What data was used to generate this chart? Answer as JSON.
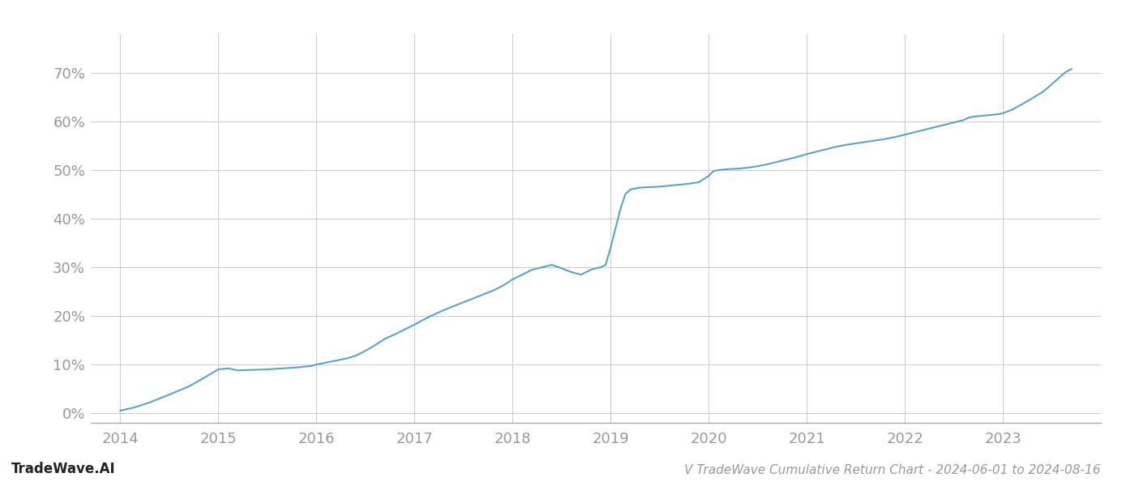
{
  "title": "V TradeWave Cumulative Return Chart - 2024-06-01 to 2024-08-16",
  "watermark": "TradeWave.AI",
  "line_color": "#5ba3c9",
  "background_color": "#ffffff",
  "grid_color": "#cccccc",
  "x_years": [
    2014,
    2015,
    2016,
    2017,
    2018,
    2019,
    2020,
    2021,
    2022,
    2023
  ],
  "data_points": [
    [
      2014.0,
      0.005
    ],
    [
      2014.15,
      0.012
    ],
    [
      2014.3,
      0.022
    ],
    [
      2014.5,
      0.038
    ],
    [
      2014.7,
      0.055
    ],
    [
      2014.85,
      0.072
    ],
    [
      2015.0,
      0.09
    ],
    [
      2015.1,
      0.092
    ],
    [
      2015.2,
      0.088
    ],
    [
      2015.35,
      0.089
    ],
    [
      2015.5,
      0.09
    ],
    [
      2015.65,
      0.092
    ],
    [
      2015.8,
      0.094
    ],
    [
      2015.95,
      0.097
    ],
    [
      2016.0,
      0.1
    ],
    [
      2016.05,
      0.102
    ],
    [
      2016.1,
      0.104
    ],
    [
      2016.15,
      0.106
    ],
    [
      2016.2,
      0.108
    ],
    [
      2016.3,
      0.112
    ],
    [
      2016.4,
      0.118
    ],
    [
      2016.5,
      0.128
    ],
    [
      2016.6,
      0.14
    ],
    [
      2016.7,
      0.153
    ],
    [
      2016.8,
      0.162
    ],
    [
      2016.9,
      0.172
    ],
    [
      2017.0,
      0.182
    ],
    [
      2017.1,
      0.193
    ],
    [
      2017.2,
      0.203
    ],
    [
      2017.3,
      0.212
    ],
    [
      2017.4,
      0.22
    ],
    [
      2017.5,
      0.228
    ],
    [
      2017.6,
      0.236
    ],
    [
      2017.7,
      0.244
    ],
    [
      2017.8,
      0.252
    ],
    [
      2017.9,
      0.262
    ],
    [
      2018.0,
      0.275
    ],
    [
      2018.1,
      0.285
    ],
    [
      2018.2,
      0.295
    ],
    [
      2018.3,
      0.3
    ],
    [
      2018.4,
      0.305
    ],
    [
      2018.5,
      0.298
    ],
    [
      2018.6,
      0.29
    ],
    [
      2018.7,
      0.285
    ],
    [
      2018.75,
      0.29
    ],
    [
      2018.8,
      0.295
    ],
    [
      2018.85,
      0.298
    ],
    [
      2018.9,
      0.3
    ],
    [
      2018.95,
      0.305
    ],
    [
      2019.0,
      0.34
    ],
    [
      2019.05,
      0.38
    ],
    [
      2019.1,
      0.42
    ],
    [
      2019.15,
      0.45
    ],
    [
      2019.2,
      0.46
    ],
    [
      2019.25,
      0.462
    ],
    [
      2019.3,
      0.464
    ],
    [
      2019.4,
      0.465
    ],
    [
      2019.5,
      0.466
    ],
    [
      2019.6,
      0.468
    ],
    [
      2019.7,
      0.47
    ],
    [
      2019.8,
      0.472
    ],
    [
      2019.9,
      0.475
    ],
    [
      2020.0,
      0.488
    ],
    [
      2020.05,
      0.498
    ],
    [
      2020.1,
      0.5
    ],
    [
      2020.2,
      0.502
    ],
    [
      2020.3,
      0.503
    ],
    [
      2020.4,
      0.505
    ],
    [
      2020.5,
      0.508
    ],
    [
      2020.6,
      0.512
    ],
    [
      2020.7,
      0.517
    ],
    [
      2020.8,
      0.522
    ],
    [
      2020.9,
      0.527
    ],
    [
      2021.0,
      0.533
    ],
    [
      2021.1,
      0.538
    ],
    [
      2021.2,
      0.543
    ],
    [
      2021.3,
      0.548
    ],
    [
      2021.4,
      0.552
    ],
    [
      2021.5,
      0.555
    ],
    [
      2021.6,
      0.558
    ],
    [
      2021.7,
      0.561
    ],
    [
      2021.8,
      0.564
    ],
    [
      2021.9,
      0.568
    ],
    [
      2022.0,
      0.573
    ],
    [
      2022.1,
      0.578
    ],
    [
      2022.2,
      0.583
    ],
    [
      2022.3,
      0.588
    ],
    [
      2022.4,
      0.593
    ],
    [
      2022.5,
      0.598
    ],
    [
      2022.6,
      0.603
    ],
    [
      2022.65,
      0.608
    ],
    [
      2022.7,
      0.61
    ],
    [
      2022.75,
      0.611
    ],
    [
      2022.8,
      0.612
    ],
    [
      2022.85,
      0.613
    ],
    [
      2022.9,
      0.614
    ],
    [
      2022.95,
      0.615
    ],
    [
      2023.0,
      0.617
    ],
    [
      2023.1,
      0.625
    ],
    [
      2023.2,
      0.636
    ],
    [
      2023.3,
      0.648
    ],
    [
      2023.4,
      0.66
    ],
    [
      2023.45,
      0.668
    ],
    [
      2023.5,
      0.677
    ],
    [
      2023.55,
      0.686
    ],
    [
      2023.6,
      0.695
    ],
    [
      2023.65,
      0.703
    ],
    [
      2023.7,
      0.708
    ]
  ],
  "ylim": [
    -0.02,
    0.78
  ],
  "yticks": [
    0.0,
    0.1,
    0.2,
    0.3,
    0.4,
    0.5,
    0.6,
    0.7
  ],
  "xlim": [
    2013.7,
    2024.0
  ],
  "title_fontsize": 11,
  "watermark_fontsize": 12,
  "axis_label_color": "#999999",
  "spine_color": "#aaaaaa",
  "tick_fontsize": 13
}
